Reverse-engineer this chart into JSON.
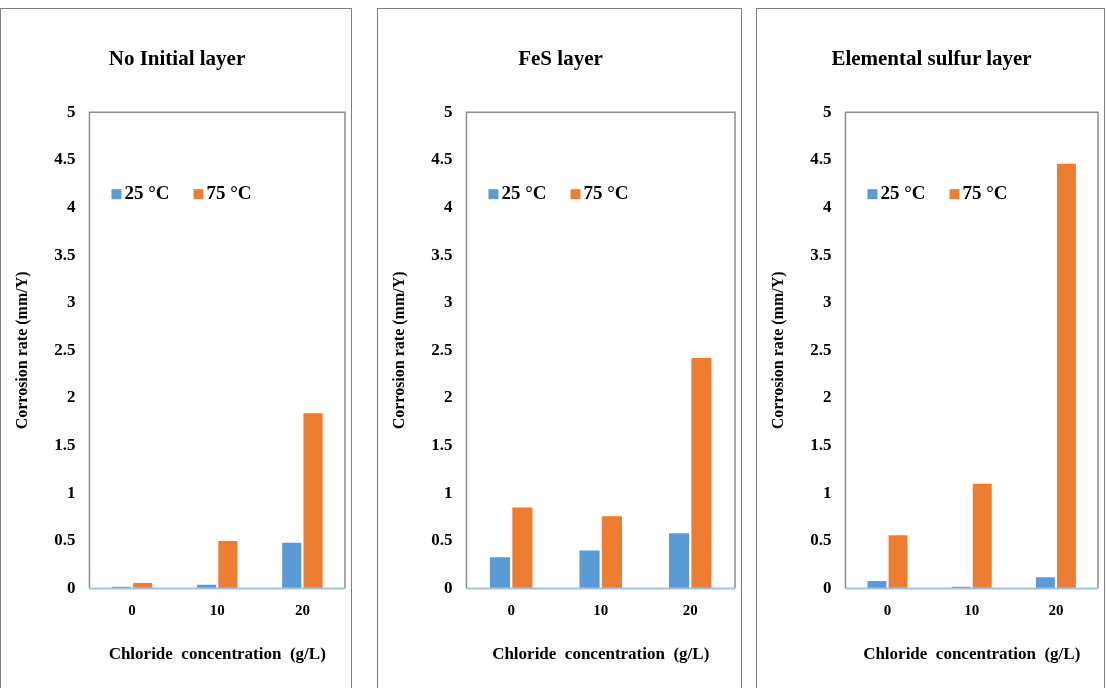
{
  "chart_data": [
    {
      "type": "bar",
      "title": "No Initial layer",
      "xlabel": "Chloride  concentration  (g/L)",
      "ylabel": "Corrosion rate (mm/Y)",
      "categories": [
        "0",
        "10",
        "20"
      ],
      "ylim": [
        0,
        5
      ],
      "yticks": [
        0,
        0.5,
        1,
        1.5,
        2,
        2.5,
        3,
        3.5,
        4,
        4.5,
        5
      ],
      "grid": false,
      "legend": "top left",
      "series": [
        {
          "name": "25 °C",
          "color": "#5b9bd5",
          "values": [
            0.02,
            0.04,
            0.48
          ]
        },
        {
          "name": "75 °C",
          "color": "#ed7d31",
          "values": [
            0.06,
            0.5,
            1.84
          ]
        }
      ]
    },
    {
      "type": "bar",
      "title": "FeS layer",
      "xlabel": "Chloride  concentration  (g/L)",
      "ylabel": "Corrosion rate (mm/Y)",
      "categories": [
        "0",
        "10",
        "20"
      ],
      "ylim": [
        0,
        5
      ],
      "yticks": [
        0,
        0.5,
        1,
        1.5,
        2,
        2.5,
        3,
        3.5,
        4,
        4.5,
        5
      ],
      "grid": false,
      "legend": "top left",
      "series": [
        {
          "name": "25 °C",
          "color": "#5b9bd5",
          "values": [
            0.33,
            0.4,
            0.58
          ]
        },
        {
          "name": "75 °C",
          "color": "#ed7d31",
          "values": [
            0.85,
            0.76,
            2.42
          ]
        }
      ]
    },
    {
      "type": "bar",
      "title": "Elemental sulfur layer",
      "xlabel": "Chloride  concentration  (g/L)",
      "ylabel": "Corrosion rate (mm/Y)",
      "categories": [
        "0",
        "10",
        "20"
      ],
      "ylim": [
        0,
        5
      ],
      "yticks": [
        0,
        0.5,
        1,
        1.5,
        2,
        2.5,
        3,
        3.5,
        4,
        4.5,
        5
      ],
      "grid": false,
      "legend": "top left",
      "series": [
        {
          "name": "25 °C",
          "color": "#5b9bd5",
          "values": [
            0.08,
            0.02,
            0.12
          ]
        },
        {
          "name": "75 °C",
          "color": "#ed7d31",
          "values": [
            0.56,
            1.1,
            4.46
          ]
        }
      ]
    }
  ]
}
